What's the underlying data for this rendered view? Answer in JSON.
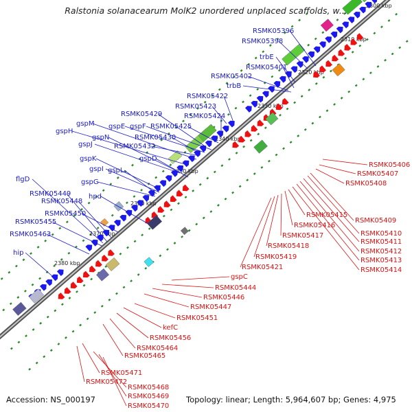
{
  "title": "Ralstonia solanacearum MolK2 unordered unplaced scaffolds, w...",
  "footer": {
    "accession": "Accession: NS_000197",
    "topology": "Topology: linear; Length: 5,964,607 bp; Genes: 4,975"
  },
  "colors": {
    "forward_label": "#1a1acc",
    "reverse_label": "#dd1111",
    "forward_gene": "#1a1aee",
    "reverse_gene": "#ee1111",
    "backbone": "#888888",
    "tick_dots": "#2a8a2a"
  },
  "scale_labels": [
    "2300 kbp",
    "2310 kbp",
    "2320 kbp",
    "2330 kbp",
    "2340 kbp",
    "2350 kbp",
    "2360 kbp",
    "2370 kbp",
    "2380 kbp"
  ],
  "forward_genes": [
    "RSMK05396",
    "RSMK05398",
    "trbE",
    "RSMK05401",
    "RSMK05402",
    "trbB",
    "RSMK05422",
    "RSMK05423",
    "RSMK05424",
    "RSMK05425",
    "RSMK05429",
    "gspF",
    "gspE",
    "gspM",
    "gspH",
    "gspJ",
    "gspN",
    "RSMK05430",
    "RSMK05432",
    "gspK",
    "gspI",
    "gspL",
    "gspG",
    "gspD",
    "flgD",
    "RSMK05449",
    "RSMK05448",
    "hpd",
    "RSMK05450",
    "RSMK05455",
    "RSMK05463",
    "hip"
  ],
  "reverse_genes": [
    "RSMK05406",
    "RSMK05407",
    "RSMK05408",
    "RSMK05409",
    "RSMK05410",
    "RSMK05411",
    "RSMK05412",
    "RSMK05413",
    "RSMK05414",
    "RSMK05415",
    "RSMK05416",
    "RSMK05417",
    "RSMK05418",
    "RSMK05419",
    "RSMK05421",
    "gspC",
    "RSMK05444",
    "RSMK05446",
    "RSMK05447",
    "RSMK05451",
    "kefC",
    "RSMK05456",
    "RSMK05464",
    "RSMK05465",
    "RSMK05471",
    "RSMK05472",
    "RSMK05468",
    "RSMK05469",
    "RSMK05470"
  ]
}
